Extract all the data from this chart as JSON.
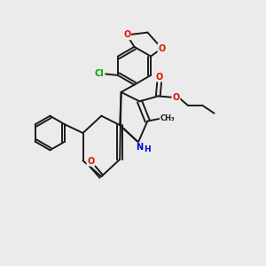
{
  "bg_color": "#ebebeb",
  "bond_color": "#1a1a1a",
  "atom_colors": {
    "O": "#dd1100",
    "N": "#0000cc",
    "Cl": "#00aa00",
    "C": "#1a1a1a"
  },
  "figsize": [
    3.0,
    3.0
  ],
  "dpi": 100,
  "lw": 1.4
}
